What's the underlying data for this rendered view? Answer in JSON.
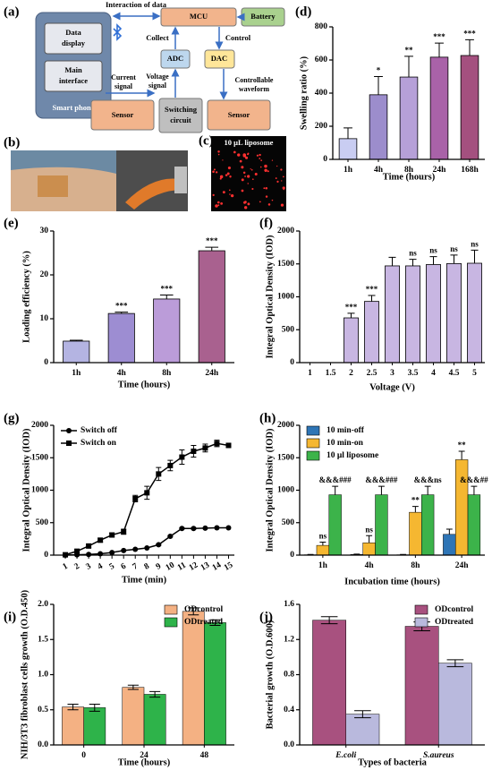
{
  "panels": {
    "a": "(a)",
    "b": "(b)",
    "c": "(c)"
  },
  "diagram": {
    "interaction": "Interaction of data",
    "mcu": "MCU",
    "battery": "Battery",
    "data_display": [
      "Data",
      "display"
    ],
    "main_interface": [
      "Main",
      "interface"
    ],
    "smart_phone": "Smart phone",
    "collect": "Collect",
    "control": "Control",
    "adc": "ADC",
    "dac": "DAC",
    "current_signal": [
      "Current",
      "signal"
    ],
    "voltage_signal": [
      "Voltage",
      "signal"
    ],
    "controllable_waveform": [
      "Controllable",
      "waveform"
    ],
    "sensor_left": "Sensor",
    "switching_circuit": [
      "Switching",
      "circuit"
    ],
    "sensor_right": "Sensor"
  },
  "photo_c_label": "10 μL liposome",
  "chart_data": [
    {
      "panel_label": "(d)",
      "type": "bar",
      "categories": [
        "1h",
        "4h",
        "8h",
        "24h",
        "168h"
      ],
      "values": [
        125,
        390,
        497,
        617,
        627
      ],
      "errors": [
        65,
        110,
        125,
        85,
        95
      ],
      "annotations": [
        null,
        "*",
        "**",
        "***",
        "***"
      ],
      "colors": [
        "#c9cdf2",
        "#9c8dcc",
        "#b6a0d8",
        "#a962a8",
        "#a4507f"
      ],
      "xlabel": "Time (hours)",
      "ylabel": "Swelling ratio (%)",
      "ylim": [
        0,
        800
      ],
      "yticks": [
        0,
        200,
        400,
        600,
        800
      ]
    },
    {
      "panel_label": "(e)",
      "type": "bar",
      "categories": [
        "1h",
        "4h",
        "8h",
        "24h"
      ],
      "values": [
        4.9,
        11.2,
        14.5,
        25.5
      ],
      "errors": [
        0.2,
        0.3,
        0.9,
        0.8
      ],
      "annotations": [
        null,
        "***",
        "***",
        "***"
      ],
      "colors": [
        "#b4b4e2",
        "#9d8dd2",
        "#bb9cd9",
        "#a9618f"
      ],
      "xlabel": "Time  (hours)",
      "ylabel": "Loading efficiency (%)",
      "ylim": [
        0,
        30
      ],
      "yticks": [
        0,
        10,
        20,
        30
      ]
    },
    {
      "panel_label": "(f)",
      "type": "bar",
      "categories": [
        "1",
        "1.5",
        "2",
        "2.5",
        "3",
        "3.5",
        "4",
        "4.5",
        "5"
      ],
      "values": [
        0,
        0,
        680,
        930,
        1470,
        1470,
        1490,
        1505,
        1510
      ],
      "errors": [
        0,
        0,
        70,
        90,
        130,
        100,
        120,
        130,
        200
      ],
      "annotations": [
        null,
        null,
        "***",
        "***",
        null,
        "ns",
        "ns",
        "ns",
        "ns"
      ],
      "color": "#c8b6e2",
      "xlabel": "Voltage (V)",
      "ylabel": "Integral Optical Density (IOD)",
      "ylim": [
        0,
        2000
      ],
      "yticks": [
        0,
        500,
        1000,
        1500,
        2000
      ]
    },
    {
      "panel_label": "(g)",
      "type": "line",
      "x": [
        1,
        2,
        3,
        4,
        5,
        6,
        7,
        8,
        9,
        10,
        11,
        12,
        13,
        14,
        15
      ],
      "series": [
        {
          "name": "Switch off",
          "color": "#000000",
          "marker": "circle",
          "values": [
            0,
            5,
            10,
            20,
            40,
            70,
            90,
            110,
            160,
            290,
            410,
            410,
            415,
            420,
            420
          ],
          "errors": [
            0,
            0,
            0,
            0,
            0,
            0,
            0,
            0,
            10,
            10,
            10,
            10,
            0,
            0,
            0
          ]
        },
        {
          "name": "Switch on",
          "color": "#000000",
          "marker": "square",
          "values": [
            5,
            60,
            140,
            230,
            310,
            360,
            870,
            960,
            1250,
            1380,
            1510,
            1600,
            1650,
            1720,
            1690
          ],
          "errors": [
            0,
            20,
            20,
            30,
            30,
            40,
            50,
            100,
            100,
            80,
            110,
            90,
            60,
            50,
            30
          ]
        }
      ],
      "legend": "upper left",
      "xlabel": "Time (min)",
      "ylabel": "Integral Optical Density (IOD)",
      "xlim": [
        0,
        15.5
      ],
      "xticks": [
        1,
        2,
        3,
        4,
        5,
        6,
        7,
        8,
        9,
        10,
        11,
        12,
        13,
        14,
        15
      ],
      "ylim": [
        0,
        2000
      ],
      "yticks": [
        0,
        500,
        1000,
        1500,
        2000
      ]
    },
    {
      "panel_label": "(h)",
      "type": "grouped_bar",
      "categories": [
        "1h",
        "4h",
        "8h",
        "24h"
      ],
      "series": [
        {
          "name": "10 min-off",
          "color": "#2e75b6",
          "values": [
            5,
            10,
            5,
            320
          ],
          "errors": [
            5,
            5,
            5,
            80
          ],
          "annotations": [
            null,
            null,
            null,
            null
          ]
        },
        {
          "name": "10 min-on",
          "color": "#f5b731",
          "values": [
            150,
            190,
            660,
            1470
          ],
          "errors": [
            50,
            110,
            90,
            130
          ],
          "annotations": [
            "ns",
            "ns",
            "**",
            "**"
          ]
        },
        {
          "name": "10 μl liposome",
          "color": "#3cb34a",
          "values": [
            930,
            930,
            930,
            930
          ],
          "errors": [
            130,
            130,
            130,
            130
          ],
          "annotations": [
            "&&&###",
            "&&&###",
            "&&&ns",
            "&&&##"
          ]
        }
      ],
      "legend": "upper left",
      "xlabel": "Incubation time (hours)",
      "ylabel": "Integral Optical Density (IOD)",
      "ylim": [
        0,
        2000
      ],
      "yticks": [
        0,
        500,
        1000,
        1500,
        2000
      ]
    },
    {
      "panel_label": "(i)",
      "type": "grouped_bar",
      "categories": [
        "0",
        "24",
        "48"
      ],
      "series": [
        {
          "name": "ODcontrol",
          "color": "#f4b183",
          "values": [
            0.54,
            0.82,
            1.9
          ],
          "errors": [
            0.04,
            0.03,
            0.05
          ]
        },
        {
          "name": "ODtreated",
          "color": "#2eb34a",
          "values": [
            0.53,
            0.72,
            1.74
          ],
          "errors": [
            0.05,
            0.04,
            0.04
          ]
        }
      ],
      "legend": "upper right",
      "xlabel": "Time (hours)",
      "ylabel": "NIH/3T3 fibroblast cells growth (O.D.450)",
      "ylim": [
        0,
        2
      ],
      "yticks": [
        {
          "value": 0,
          "label": "0.0"
        },
        0.5,
        {
          "value": 1,
          "label": "1.0"
        },
        1.5,
        {
          "value": 2,
          "label": "2.0"
        }
      ]
    },
    {
      "panel_label": "(j)",
      "type": "grouped_bar",
      "categories": [
        "E.coli",
        "S.aureus"
      ],
      "series": [
        {
          "name": "ODcontrol",
          "color": "#a8517f",
          "values": [
            1.42,
            1.35
          ],
          "errors": [
            0.04,
            0.05
          ]
        },
        {
          "name": "ODtreated",
          "color": "#b9b9dd",
          "values": [
            0.35,
            0.93
          ],
          "errors": [
            0.04,
            0.04
          ]
        }
      ],
      "legend": "upper right",
      "italic_categories": true,
      "xlabel": "Types of bacteria",
      "ylabel": "Bacterial growth (O.D.600)",
      "ylim": [
        0,
        1.6
      ],
      "yticks": [
        {
          "value": 0,
          "label": "0.0"
        },
        0.4,
        0.8,
        1.2,
        1.6
      ]
    }
  ]
}
